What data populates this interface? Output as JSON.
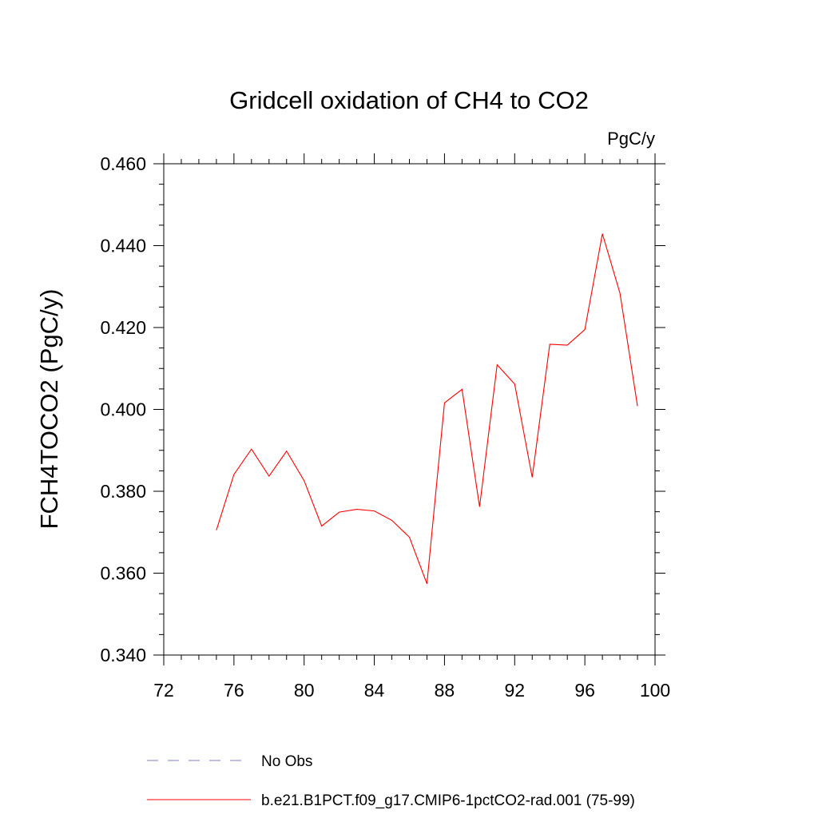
{
  "chart_data": {
    "type": "line",
    "title": "Gridcell oxidation of CH4 to CO2",
    "units_label": "PgC/y",
    "ylabel": "FCH4TOCO2  (PgC/y)",
    "xlabel": "",
    "xlim": [
      72,
      100
    ],
    "ylim": [
      0.34,
      0.46
    ],
    "x_ticks": [
      72,
      76,
      80,
      84,
      88,
      92,
      96,
      100
    ],
    "x_tick_labels": [
      "72",
      "76",
      "80",
      "84",
      "88",
      "92",
      "96",
      "100"
    ],
    "x_minor_step": 1,
    "y_ticks": [
      0.34,
      0.36,
      0.38,
      0.4,
      0.42,
      0.44,
      0.46
    ],
    "y_tick_labels": [
      "0.340",
      "0.360",
      "0.380",
      "0.400",
      "0.420",
      "0.440",
      "0.460"
    ],
    "y_minor_step": 0.005,
    "grid": false,
    "legend_position": "bottom",
    "series": [
      {
        "name": "b.e21.B1PCT.f09_g17.CMIP6-1pctCO2-rad.001 (75-99)",
        "color": "#ff0000",
        "style": "solid",
        "x": [
          75,
          76,
          77,
          78,
          79,
          80,
          81,
          82,
          83,
          84,
          85,
          86,
          87,
          88,
          89,
          90,
          91,
          92,
          93,
          94,
          95,
          96,
          97,
          98,
          99
        ],
        "values": [
          0.3705,
          0.3841,
          0.3903,
          0.3837,
          0.3898,
          0.3826,
          0.3715,
          0.3749,
          0.3756,
          0.3752,
          0.3729,
          0.3688,
          0.3574,
          0.4016,
          0.4049,
          0.3762,
          0.4109,
          0.4062,
          0.3834,
          0.4159,
          0.4157,
          0.4195,
          0.4429,
          0.4284,
          0.4008
        ]
      },
      {
        "name": "No Obs",
        "color": "#7f7fbf",
        "style": "dashed",
        "x": [],
        "values": []
      }
    ]
  }
}
